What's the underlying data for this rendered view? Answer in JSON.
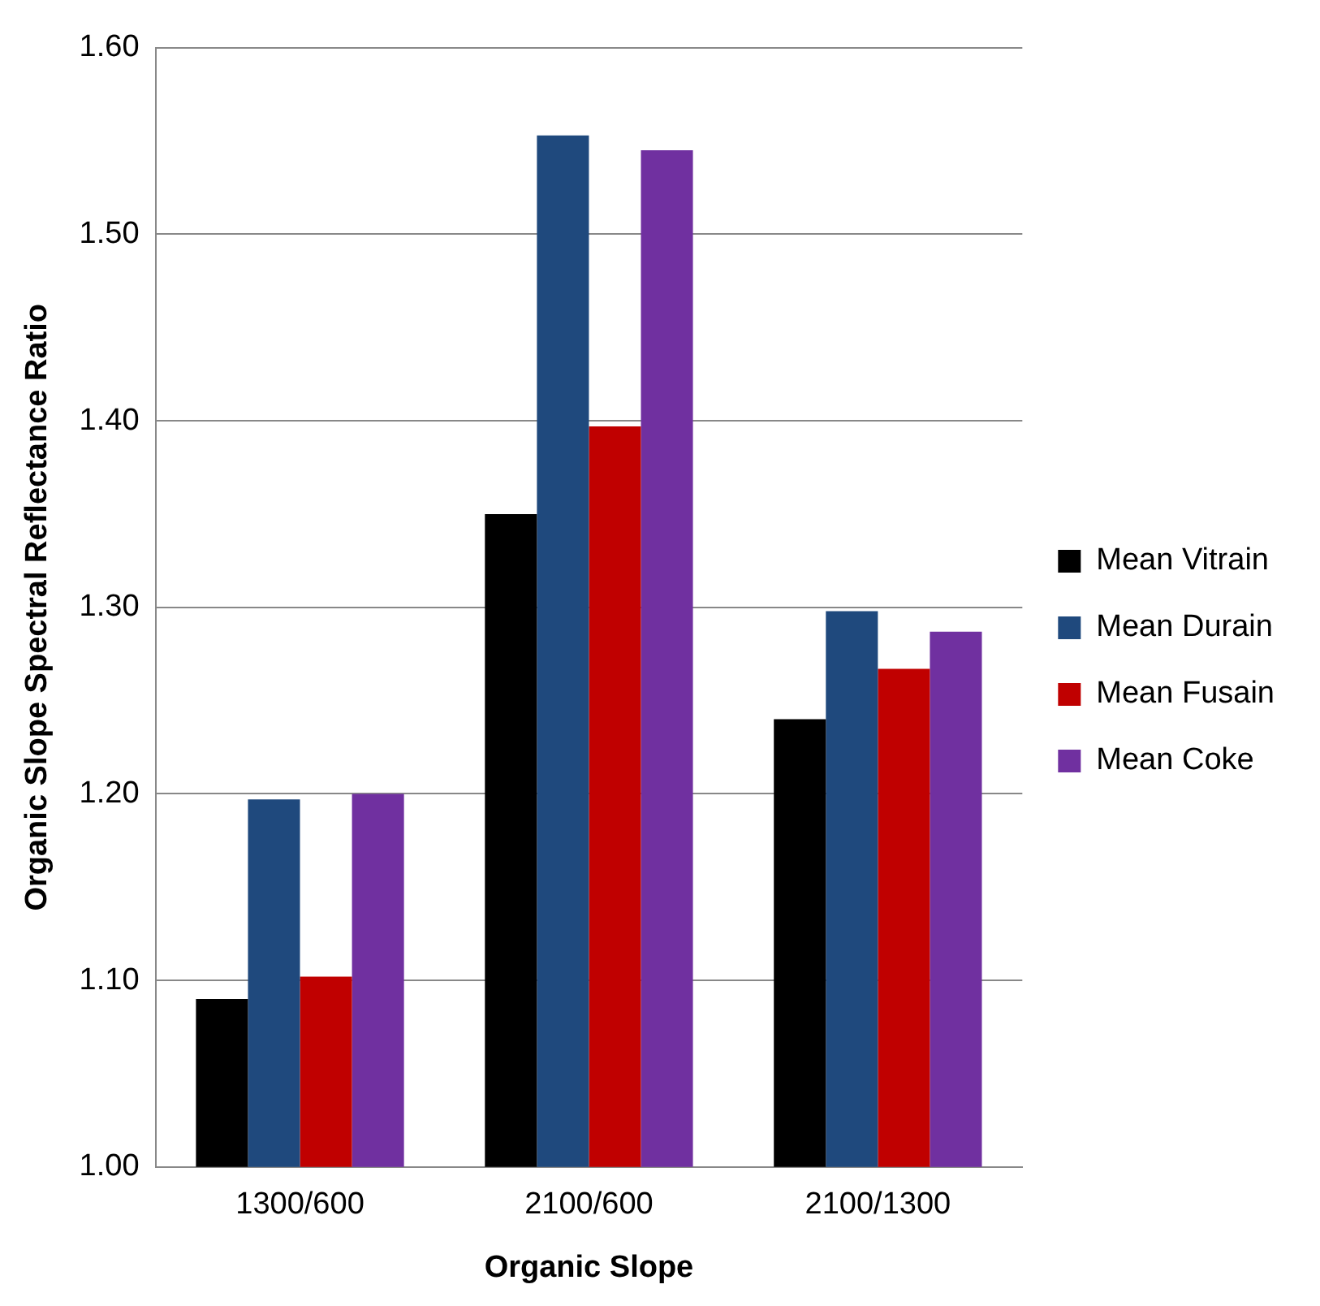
{
  "chart_data": {
    "type": "bar",
    "xlabel": "Organic Slope",
    "ylabel": "Organic Slope Spectral Reflectance Ratio",
    "categories": [
      "1300/600",
      "2100/600",
      "2100/1300"
    ],
    "series": [
      {
        "name": "Mean Vitrain",
        "color": "#000000",
        "values": [
          1.09,
          1.35,
          1.24
        ]
      },
      {
        "name": "Mean Durain",
        "color": "#1f497d",
        "values": [
          1.197,
          1.553,
          1.298
        ]
      },
      {
        "name": "Mean Fusain",
        "color": "#c00000",
        "values": [
          1.102,
          1.397,
          1.267
        ]
      },
      {
        "name": "Mean Coke",
        "color": "#7030a0",
        "values": [
          1.2,
          1.545,
          1.287
        ]
      }
    ],
    "ylim": [
      1.0,
      1.6
    ],
    "yticks": [
      {
        "value": 1.0,
        "label": "1.00"
      },
      {
        "value": 1.1,
        "label": "1.10"
      },
      {
        "value": 1.2,
        "label": "1.20"
      },
      {
        "value": 1.3,
        "label": "1.30"
      },
      {
        "value": 1.4,
        "label": "1.40"
      },
      {
        "value": 1.5,
        "label": "1.50"
      },
      {
        "value": 1.6,
        "label": "1.60"
      }
    ],
    "grid": "y",
    "legend": "right"
  }
}
